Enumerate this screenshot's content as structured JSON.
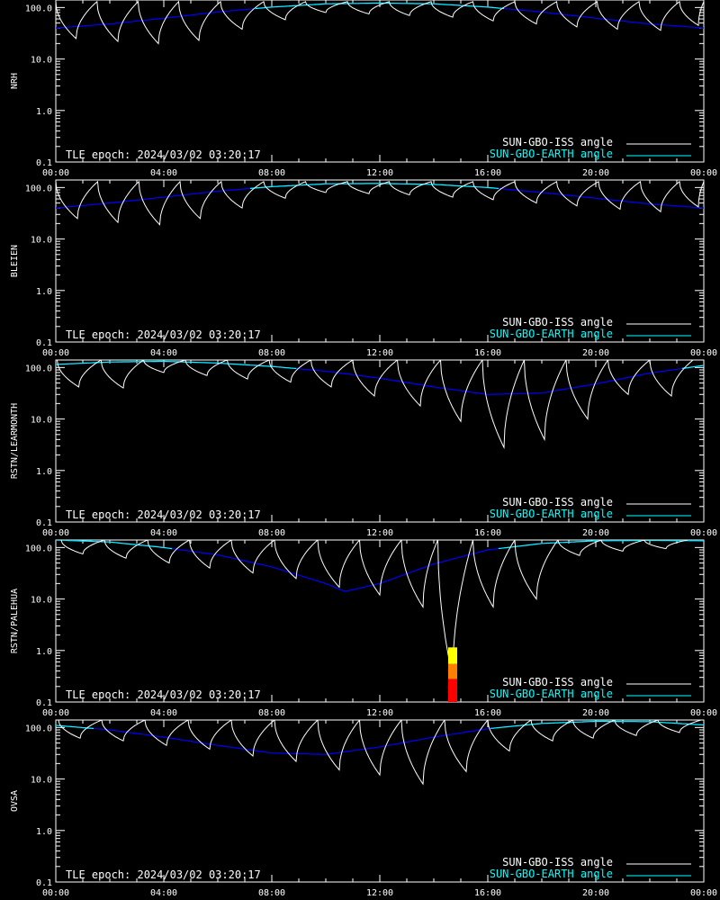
{
  "chart_data": [
    {
      "type": "line",
      "station": "NRH",
      "ylabel": "NRH",
      "epoch_text": "TLE epoch: 2024/03/02 03:20:17",
      "x_ticks": [
        "00:00",
        "04:00",
        "08:00",
        "12:00",
        "16:00",
        "20:00",
        "00:00"
      ],
      "y_ticks": [
        "0.1",
        "1.0",
        "10.0",
        "100.0"
      ],
      "xlim_hours": [
        0,
        24
      ],
      "ylim": [
        0.1,
        140
      ],
      "y_scale": "log",
      "legend_placement": "bottom-right",
      "earth_series": {
        "name": "SUN-GBO-EARTH angle",
        "x": [
          0,
          2,
          4,
          6,
          8,
          10,
          12,
          14,
          16,
          18,
          20,
          22,
          24
        ],
        "y": [
          40,
          48,
          62,
          82,
          102,
          118,
          122,
          118,
          102,
          82,
          62,
          48,
          40
        ]
      },
      "iss_series": {
        "name": "SUN-GBO-ISS angle",
        "peaks": 130,
        "min_x": [
          0.75,
          2.3,
          3.8,
          5.3,
          6.9,
          8.5,
          10.0,
          11.6,
          13.1,
          14.7,
          16.2,
          17.8,
          19.3,
          20.8,
          22.4,
          23.8
        ],
        "min_y": [
          25,
          22,
          20,
          23,
          38,
          58,
          80,
          75,
          70,
          65,
          55,
          48,
          42,
          38,
          36,
          45
        ]
      },
      "events": []
    },
    {
      "type": "line",
      "station": "BLEIEN",
      "ylabel": "BLEIEN",
      "epoch_text": "TLE epoch: 2024/03/02 03:20:17",
      "x_ticks": [
        "00:00",
        "04:00",
        "08:00",
        "12:00",
        "16:00",
        "20:00",
        "00:00"
      ],
      "y_ticks": [
        "0.1",
        "1.0",
        "10.0",
        "100.0"
      ],
      "xlim_hours": [
        0,
        24
      ],
      "ylim": [
        0.1,
        140
      ],
      "y_scale": "log",
      "legend_placement": "bottom-right",
      "earth_series": {
        "name": "SUN-GBO-EARTH angle",
        "x": [
          0,
          2,
          4,
          6,
          8,
          10,
          12,
          14,
          16,
          18,
          20,
          22,
          24
        ],
        "y": [
          40,
          50,
          65,
          85,
          104,
          118,
          120,
          115,
          100,
          80,
          62,
          48,
          40
        ]
      },
      "iss_series": {
        "name": "SUN-GBO-ISS angle",
        "peaks": 130,
        "min_x": [
          0.8,
          2.3,
          3.85,
          5.35,
          6.9,
          8.5,
          10.0,
          11.6,
          13.1,
          14.7,
          16.2,
          17.8,
          19.3,
          20.9,
          22.4,
          23.8
        ],
        "min_y": [
          25,
          21,
          19,
          25,
          40,
          62,
          80,
          76,
          72,
          65,
          58,
          50,
          44,
          38,
          34,
          42
        ]
      },
      "events": []
    },
    {
      "type": "line",
      "station": "RSTN/LEARMONTH",
      "ylabel": "RSTN/LEARMONTH",
      "epoch_text": "TLE epoch: 2024/03/02 03:20:17",
      "x_ticks": [
        "00:00",
        "04:00",
        "08:00",
        "12:00",
        "16:00",
        "20:00",
        "00:00"
      ],
      "y_ticks": [
        "0.1",
        "1.0",
        "10.0",
        "100.0"
      ],
      "xlim_hours": [
        0,
        24
      ],
      "ylim": [
        0.1,
        140
      ],
      "y_scale": "log",
      "legend_placement": "bottom-right",
      "earth_series": {
        "name": "SUN-GBO-EARTH angle",
        "x": [
          0,
          2,
          4,
          6,
          8,
          10,
          12,
          14,
          16,
          18,
          20,
          22,
          24
        ],
        "y": [
          115,
          128,
          132,
          122,
          105,
          85,
          62,
          42,
          30,
          32,
          48,
          78,
          110
        ]
      },
      "iss_series": {
        "name": "SUN-GBO-ISS angle",
        "peaks": 140,
        "min_x": [
          0.85,
          2.5,
          4.0,
          5.6,
          7.1,
          8.7,
          10.2,
          11.8,
          13.5,
          15.0,
          16.6,
          18.1,
          19.7,
          21.2,
          22.8
        ],
        "min_y": [
          42,
          40,
          80,
          70,
          60,
          52,
          42,
          28,
          18,
          9,
          2.8,
          4,
          10,
          30,
          28
        ]
      },
      "events": []
    },
    {
      "type": "line",
      "station": "RSTN/PALEHUA",
      "ylabel": "RSTN/PALEHUA",
      "epoch_text": "TLE epoch: 2024/03/02 03:20:17",
      "x_ticks": [
        "00:00",
        "04:00",
        "08:00",
        "12:00",
        "16:00",
        "20:00",
        "00:00"
      ],
      "y_ticks": [
        "0.1",
        "1.0",
        "10.0",
        "100.0"
      ],
      "xlim_hours": [
        0,
        24
      ],
      "ylim": [
        0.1,
        140
      ],
      "y_scale": "log",
      "legend_placement": "bottom-right",
      "earth_series": {
        "name": "SUN-GBO-EARTH angle",
        "x": [
          0,
          2,
          4,
          6,
          8,
          10,
          10.7,
          12,
          14,
          16,
          18,
          20,
          22,
          24
        ],
        "y": [
          140,
          128,
          100,
          72,
          42,
          20,
          14,
          20,
          48,
          90,
          120,
          135,
          138,
          135
        ]
      },
      "iss_series": {
        "name": "SUN-GBO-ISS angle",
        "peaks": 140,
        "min_x": [
          1.0,
          2.6,
          4.2,
          5.7,
          7.3,
          8.9,
          10.5,
          12.0,
          13.6,
          14.7,
          16.2,
          17.8,
          19.4,
          21.0,
          22.6
        ],
        "min_y": [
          75,
          62,
          50,
          40,
          32,
          25,
          17,
          12,
          7,
          0.3,
          7,
          10,
          70,
          85,
          95
        ]
      },
      "events": [
        {
          "x_hours": 14.7,
          "ylow": 0.1,
          "yhigh": 0.28,
          "color": "#ff0000"
        },
        {
          "x_hours": 14.7,
          "ylow": 0.28,
          "yhigh": 0.55,
          "color": "#ff8000"
        },
        {
          "x_hours": 14.7,
          "ylow": 0.55,
          "yhigh": 1.15,
          "color": "#ffff00"
        }
      ]
    },
    {
      "type": "line",
      "station": "OVSA",
      "ylabel": "OVSA",
      "epoch_text": "TLE epoch: 2024/03/02 03:20:17",
      "x_ticks": [
        "00:00",
        "04:00",
        "08:00",
        "12:00",
        "16:00",
        "20:00",
        "00:00"
      ],
      "y_ticks": [
        "0.1",
        "1.0",
        "10.0",
        "100.0"
      ],
      "xlim_hours": [
        0,
        24
      ],
      "ylim": [
        0.1,
        140
      ],
      "y_scale": "log",
      "legend_placement": "bottom-right",
      "earth_series": {
        "name": "SUN-GBO-EARTH angle",
        "x": [
          0,
          2,
          4,
          6,
          8,
          10,
          12,
          14,
          16,
          18,
          20,
          22,
          24
        ],
        "y": [
          110,
          90,
          65,
          45,
          32,
          30,
          42,
          65,
          95,
          120,
          132,
          130,
          112
        ]
      },
      "iss_series": {
        "name": "SUN-GBO-ISS angle",
        "peaks": 140,
        "min_x": [
          0.9,
          2.5,
          4.1,
          5.7,
          7.3,
          8.9,
          10.5,
          12.0,
          13.6,
          15.2,
          16.8,
          18.4,
          19.9,
          21.5,
          23.1
        ],
        "min_y": [
          62,
          55,
          45,
          38,
          28,
          22,
          15,
          12,
          8,
          14,
          35,
          55,
          62,
          70,
          80
        ]
      },
      "events": []
    }
  ],
  "colors": {
    "iss": "#ffffff",
    "earth_light": "#00ffff",
    "earth_dark": "#0000ff",
    "axes": "#ffffff",
    "background": "#000000"
  }
}
